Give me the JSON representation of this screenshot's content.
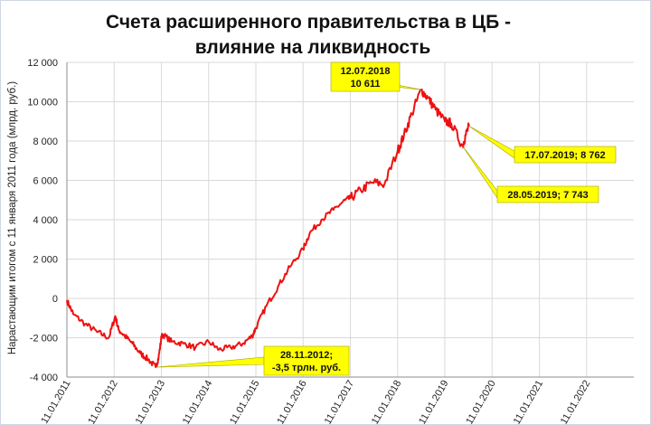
{
  "chart_data": {
    "type": "line",
    "title": [
      "Счета расширенного правительства в ЦБ -",
      "влияние на ликвидность"
    ],
    "ylabel": "Нарастающим итогом с 11 января 2011 года (млрд. руб.)",
    "xlabel": "",
    "ylim": [
      -4000,
      12000
    ],
    "y_ticks": [
      -4000,
      -2000,
      0,
      2000,
      4000,
      6000,
      8000,
      10000,
      12000
    ],
    "y_tick_labels": [
      "-4 000",
      "-2 000",
      "0",
      "2 000",
      "4 000",
      "6 000",
      "8 000",
      "10 000",
      "12 000"
    ],
    "x_range": [
      "2011-01-11",
      "2023-01-11"
    ],
    "x_ticks": [
      "2011-01-11",
      "2012-01-11",
      "2013-01-11",
      "2014-01-11",
      "2015-01-11",
      "2016-01-11",
      "2017-01-11",
      "2018-01-11",
      "2019-01-11",
      "2020-01-11",
      "2021-01-11",
      "2022-01-11"
    ],
    "x_tick_labels": [
      "11.01.2011",
      "11.01.2012",
      "11.01.2013",
      "11.01.2014",
      "11.01.2015",
      "11.01.2016",
      "11.01.2017",
      "11.01.2018",
      "11.01.2019",
      "11.01.2020",
      "11.01.2021",
      "11.01.2022"
    ],
    "grid": true,
    "series_color": "#ee1111",
    "series": [
      {
        "x": [
          "2011-01-11",
          "2011-03-01",
          "2011-06-01",
          "2011-09-01",
          "2011-12-01",
          "2012-01-20",
          "2012-02-15",
          "2012-04-01",
          "2012-06-01",
          "2012-08-01",
          "2012-10-01",
          "2012-11-28",
          "2012-12-20",
          "2013-01-15",
          "2013-04-01",
          "2013-07-01",
          "2013-10-01",
          "2014-01-11",
          "2014-04-01",
          "2014-07-01",
          "2014-10-01",
          "2014-12-15",
          "2015-01-11",
          "2015-04-01",
          "2015-07-01",
          "2015-10-01",
          "2016-01-11",
          "2016-03-01",
          "2016-06-01",
          "2016-09-01",
          "2016-12-01",
          "2017-01-11",
          "2017-04-01",
          "2017-07-01",
          "2017-10-01",
          "2018-01-11",
          "2018-03-01",
          "2018-05-01",
          "2018-07-12",
          "2018-09-01",
          "2018-11-01",
          "2019-01-11",
          "2019-03-01",
          "2019-05-28",
          "2019-06-20",
          "2019-07-17"
        ],
        "y": [
          -100,
          -800,
          -1300,
          -1700,
          -2000,
          -900,
          -1600,
          -1900,
          -2300,
          -2800,
          -3100,
          -3500,
          -3000,
          -1800,
          -2200,
          -2300,
          -2500,
          -2200,
          -2600,
          -2500,
          -2300,
          -1900,
          -1500,
          -400,
          600,
          1600,
          2500,
          3300,
          4000,
          4500,
          5000,
          5100,
          5500,
          5900,
          5800,
          7500,
          8300,
          9400,
          10611,
          10200,
          9600,
          9000,
          8900,
          7743,
          8300,
          8762
        ]
      }
    ],
    "annotations": [
      {
        "text_lines": [
          "12.07.2018",
          "10 611"
        ],
        "x": "2018-07-12",
        "y": 10611
      },
      {
        "text_lines": [
          "17.07.2019; 8 762"
        ],
        "x": "2019-07-17",
        "y": 8762
      },
      {
        "text_lines": [
          "28.05.2019; 7 743"
        ],
        "x": "2019-05-28",
        "y": 7743
      },
      {
        "text_lines": [
          "28.11.2012;",
          "-3,5 трлн. руб."
        ],
        "x": "2012-11-28",
        "y": -3500
      }
    ],
    "annotation_fill": "#ffff00"
  }
}
